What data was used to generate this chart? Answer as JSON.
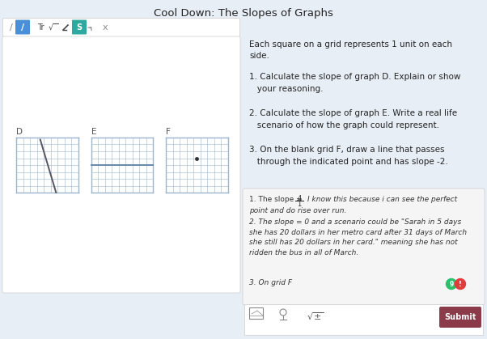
{
  "title": "Cool Down: The Slopes of Graphs",
  "bg_color": "#e8eef5",
  "instruction_text": "Each square on a grid represents 1 unit on each\nside.",
  "question1": "1. Calculate the slope of graph D. Explain or show\n   your reasoning.",
  "question2": "2. Calculate the slope of graph E. Write a real life\n   scenario of how the graph could represent.",
  "question3": "3. On the blank grid F, draw a line that passes\n   through the indicated point and has slope -2.",
  "answer_box_bg": "#f5f5f5",
  "answer2_text": "2. The slope = 0 and a scenario could be \"Sarah in 5 days\nshe has 20 dollars in her metro card after 31 days of March\nshe still has 20 dollars in her card.\" meaning she has not\nridden the bus in all of March.",
  "answer3_text": "3. On grid F",
  "submit_btn_color": "#8b3a4a",
  "submit_btn_text": "Submit",
  "grid_color": "#9bb5cc",
  "graph_D_line_color": "#555566",
  "graph_E_line_color": "#6688aa",
  "graph_F_dot_color": "#333333",
  "blue_btn_color": "#4a90d9",
  "teal_btn_color": "#2fa8a0"
}
